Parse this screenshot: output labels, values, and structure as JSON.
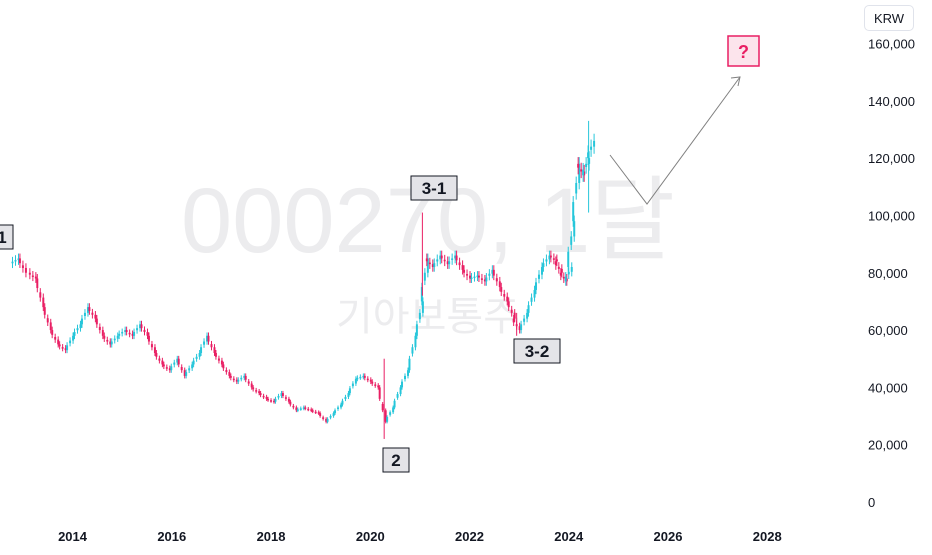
{
  "currency": "KRW",
  "watermark": {
    "symbol_line": "000270, 1달",
    "name_line": "기아보통주"
  },
  "chart_data": {
    "type": "candlestick",
    "y_ticks": [
      "0",
      "20,000",
      "40,000",
      "60,000",
      "80,000",
      "100,000",
      "120,000",
      "140,000",
      "160,000"
    ],
    "ylim": [
      0,
      160000
    ],
    "x_ticks": [
      "2014",
      "2016",
      "2018",
      "2020",
      "2022",
      "2024",
      "2026",
      "2028"
    ],
    "xlim": [
      2012.8,
      2029.8
    ],
    "colors": {
      "up": "#26c6da",
      "down": "#e91e63",
      "arrow": "#808080",
      "question_bg": "#fce4ec",
      "question_fg": "#e91e63"
    },
    "series": [
      {
        "name": "candles",
        "points": [
          [
            2012.85,
            85000
          ],
          [
            2013.0,
            80000
          ],
          [
            2013.2,
            78000
          ],
          [
            2013.35,
            68000
          ],
          [
            2013.5,
            60000
          ],
          [
            2013.65,
            55000
          ],
          [
            2013.8,
            53000
          ],
          [
            2013.95,
            58000
          ],
          [
            2014.1,
            62000
          ],
          [
            2014.25,
            68000
          ],
          [
            2014.4,
            64000
          ],
          [
            2014.55,
            58000
          ],
          [
            2014.7,
            55000
          ],
          [
            2014.85,
            58000
          ],
          [
            2015.0,
            60000
          ],
          [
            2015.15,
            58000
          ],
          [
            2015.3,
            62000
          ],
          [
            2015.45,
            58000
          ],
          [
            2015.6,
            52000
          ],
          [
            2015.75,
            48000
          ],
          [
            2015.9,
            46000
          ],
          [
            2016.05,
            50000
          ],
          [
            2016.2,
            44000
          ],
          [
            2016.35,
            48000
          ],
          [
            2016.5,
            52000
          ],
          [
            2016.65,
            58000
          ],
          [
            2016.8,
            52000
          ],
          [
            2016.95,
            48000
          ],
          [
            2017.1,
            44000
          ],
          [
            2017.25,
            42000
          ],
          [
            2017.4,
            44000
          ],
          [
            2017.55,
            40000
          ],
          [
            2017.7,
            38000
          ],
          [
            2017.85,
            36000
          ],
          [
            2018.0,
            35000
          ],
          [
            2018.15,
            38000
          ],
          [
            2018.3,
            35000
          ],
          [
            2018.45,
            32000
          ],
          [
            2018.6,
            33000
          ],
          [
            2018.75,
            32000
          ],
          [
            2018.9,
            31000
          ],
          [
            2019.05,
            28000
          ],
          [
            2019.2,
            31000
          ],
          [
            2019.35,
            34000
          ],
          [
            2019.5,
            38000
          ],
          [
            2019.65,
            43000
          ],
          [
            2019.8,
            44000
          ],
          [
            2019.95,
            42000
          ],
          [
            2020.1,
            40000
          ],
          [
            2020.25,
            28000
          ],
          [
            2020.4,
            33000
          ],
          [
            2020.55,
            40000
          ],
          [
            2020.7,
            46000
          ],
          [
            2020.85,
            58000
          ],
          [
            2021.0,
            70000
          ],
          [
            2021.1,
            85000
          ],
          [
            2021.2,
            82000
          ],
          [
            2021.35,
            86000
          ],
          [
            2021.5,
            83000
          ],
          [
            2021.65,
            86000
          ],
          [
            2021.8,
            81000
          ],
          [
            2021.95,
            78000
          ],
          [
            2022.1,
            79000
          ],
          [
            2022.25,
            77000
          ],
          [
            2022.4,
            81000
          ],
          [
            2022.55,
            75000
          ],
          [
            2022.7,
            70000
          ],
          [
            2022.85,
            64000
          ],
          [
            2022.95,
            60000
          ],
          [
            2023.1,
            66000
          ],
          [
            2023.25,
            74000
          ],
          [
            2023.4,
            82000
          ],
          [
            2023.55,
            86000
          ],
          [
            2023.7,
            84000
          ],
          [
            2023.8,
            80000
          ],
          [
            2023.9,
            77000
          ],
          [
            2024.0,
            82000
          ],
          [
            2024.05,
            98000
          ],
          [
            2024.15,
            118000
          ],
          [
            2024.25,
            114000
          ],
          [
            2024.35,
            120000
          ],
          [
            2024.45,
            126000
          ]
        ]
      }
    ],
    "wave_labels": [
      "3-1",
      "3-2",
      "2",
      "1",
      "?"
    ],
    "projection_path": [
      [
        2024.55,
        120000
      ],
      [
        2025.3,
        104000
      ],
      [
        2027.2,
        148000
      ]
    ]
  }
}
